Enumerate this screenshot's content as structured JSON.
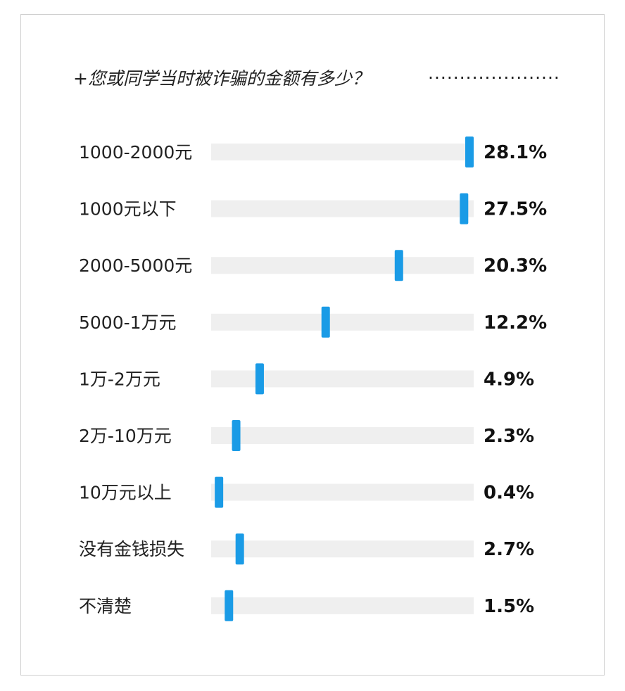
{
  "title": "+您或同学当时被诈骗的金额有多少？",
  "title_leader": "·····················",
  "colors": {
    "track": "#efefef",
    "marker": "#1a9be6",
    "text": "#222222"
  },
  "chart_data": {
    "type": "bar",
    "title": "+您或同学当时被诈骗的金额有多少？",
    "categories": [
      "1000-2000元",
      "1000元以下",
      "2000-5000元",
      "5000-1万元",
      "1万-2万元",
      "2万-10万元",
      "10万元以上",
      "没有金钱损失",
      "不清楚"
    ],
    "values": [
      28.1,
      27.5,
      20.3,
      12.2,
      4.9,
      2.3,
      0.4,
      2.7,
      1.5
    ],
    "value_labels": [
      "28.1%",
      "27.5%",
      "20.3%",
      "12.2%",
      "4.9%",
      "2.3%",
      "0.4%",
      "2.7%",
      "1.5%"
    ],
    "xlim": [
      0,
      28.1
    ],
    "grid": false,
    "legend": "none",
    "xlabel": "",
    "ylabel": ""
  }
}
